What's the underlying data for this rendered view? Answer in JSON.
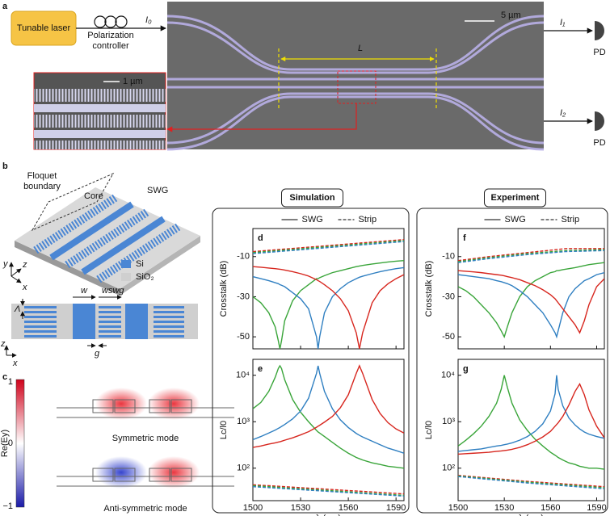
{
  "figure": {
    "panel_a": {
      "label": "a",
      "laser": "Tunable laser",
      "controller": "Polarization controller",
      "input": "I₀",
      "scale": "5 µm",
      "length": "L",
      "inset_scale": "1 µm",
      "output1": "I₁",
      "output2": "I₂",
      "detector1": "PD",
      "detector2": "PD"
    },
    "panel_b": {
      "label": "b",
      "floquet": "Floquet boundary",
      "core": "Core",
      "swg": "SWG",
      "axis_y": "y",
      "axis_z": "z",
      "axis_x": "x",
      "legend_si": "Si",
      "legend_sio2": "SiO₂",
      "width": "w",
      "width_swg": "wswg",
      "period": "Λ",
      "gap": "g",
      "axis_z2": "z",
      "axis_x2": "x"
    },
    "panel_c": {
      "label": "c",
      "colorbar_label": "Re(Ey)",
      "colorbar_max": "1",
      "colorbar_mid": "0",
      "colorbar_min": "−1",
      "symmetric": "Symmetric mode",
      "antisymmetric": "Anti-symmetric mode"
    }
  },
  "chart_data": [
    {
      "type": "line",
      "label": "d",
      "title": "Simulation",
      "legend": true,
      "ylabel": "Crosstalk (dB)",
      "xlim": [
        1500,
        1595
      ],
      "xticks": [
        1500,
        1530,
        1560,
        1590
      ],
      "show_xtick_labels": false,
      "ylim": [
        -56,
        4
      ],
      "yticks": [
        -10,
        -30,
        -50
      ],
      "x": [
        1500,
        1505,
        1510,
        1514,
        1516,
        1517,
        1518,
        1520,
        1525,
        1530,
        1535,
        1540,
        1541,
        1542,
        1545,
        1550,
        1555,
        1560,
        1565,
        1567,
        1569,
        1575,
        1580,
        1585,
        1590,
        1595
      ],
      "series": [
        {
          "name": "SWG",
          "style": "solid",
          "color": "#3aa53a",
          "values": [
            -30,
            -33,
            -38,
            -45,
            -52,
            -56,
            -52,
            -42,
            -32,
            -27,
            -24,
            -21,
            -21,
            -20.5,
            -19.5,
            -18,
            -17,
            -16,
            -15,
            -14.7,
            -14.4,
            -13.7,
            -13.2,
            -12.7,
            -12.3,
            -12
          ]
        },
        {
          "name": "SWG",
          "style": "solid",
          "color": "#2f7fc1",
          "values": [
            -20,
            -21,
            -22,
            -23,
            -23.5,
            -24,
            -24.3,
            -25,
            -28,
            -31,
            -36,
            -50,
            -56,
            -50,
            -38,
            -30,
            -26,
            -23,
            -21,
            -20.3,
            -19.8,
            -18.5,
            -17.5,
            -16.7,
            -16,
            -15.5
          ]
        },
        {
          "name": "SWG",
          "style": "solid",
          "color": "#d7261e",
          "values": [
            -15,
            -15.3,
            -15.7,
            -16,
            -16.2,
            -16.3,
            -16.4,
            -16.7,
            -17.5,
            -18.5,
            -19.7,
            -21.5,
            -22,
            -22.4,
            -24,
            -27,
            -31,
            -37,
            -48,
            -56,
            -48,
            -33,
            -27,
            -23.5,
            -21,
            -19
          ]
        },
        {
          "name": "Strip",
          "style": "dashed",
          "color": "#d7261e",
          "x": [
            1500,
            1595
          ],
          "values": [
            -7.5,
            -1.5
          ]
        },
        {
          "name": "Strip",
          "style": "dashed",
          "color": "#3aa53a",
          "x": [
            1500,
            1595
          ],
          "values": [
            -8,
            -2
          ]
        },
        {
          "name": "Strip",
          "style": "dashed",
          "color": "#2f7fc1",
          "x": [
            1500,
            1595
          ],
          "values": [
            -8.5,
            -2.5
          ]
        }
      ]
    },
    {
      "type": "line",
      "label": "e",
      "ylabel": "Lc/l0",
      "xlabel": "λ (nm)",
      "ylog": true,
      "xlim": [
        1500,
        1595
      ],
      "xticks": [
        1500,
        1530,
        1560,
        1590
      ],
      "ylim": [
        20,
        22000
      ],
      "yticks": [
        {
          "value": 100,
          "label": "10²"
        },
        {
          "value": 1000,
          "label": "10³"
        },
        {
          "value": 10000,
          "label": "10⁴"
        }
      ],
      "x": [
        1500,
        1505,
        1510,
        1514,
        1516,
        1517,
        1518,
        1520,
        1525,
        1530,
        1535,
        1540,
        1541,
        1542,
        1545,
        1550,
        1555,
        1560,
        1565,
        1567,
        1569,
        1575,
        1580,
        1585,
        1590,
        1595
      ],
      "series": [
        {
          "name": "SWG",
          "style": "solid",
          "color": "#3aa53a",
          "values": [
            1900,
            2600,
            4500,
            9000,
            14000,
            16000,
            14000,
            8000,
            3000,
            1600,
            1000,
            650,
            600,
            570,
            480,
            360,
            270,
            210,
            170,
            160,
            150,
            130,
            120,
            110,
            105,
            100
          ]
        },
        {
          "name": "SWG",
          "style": "solid",
          "color": "#2f7fc1",
          "values": [
            410,
            480,
            570,
            660,
            720,
            750,
            790,
            870,
            1150,
            1700,
            3200,
            11000,
            16000,
            11000,
            4500,
            1900,
            1100,
            750,
            560,
            510,
            470,
            380,
            320,
            270,
            240,
            210
          ]
        },
        {
          "name": "SWG",
          "style": "solid",
          "color": "#d7261e",
          "values": [
            280,
            300,
            330,
            350,
            365,
            370,
            380,
            400,
            450,
            520,
            610,
            760,
            800,
            840,
            980,
            1300,
            2000,
            3800,
            11000,
            16000,
            11000,
            3000,
            1500,
            950,
            700,
            570
          ]
        },
        {
          "name": "Strip",
          "style": "dashed",
          "color": "#d7261e",
          "x": [
            1500,
            1595
          ],
          "values": [
            44,
            28
          ]
        },
        {
          "name": "Strip",
          "style": "dashed",
          "color": "#3aa53a",
          "x": [
            1500,
            1595
          ],
          "values": [
            42,
            26
          ]
        },
        {
          "name": "Strip",
          "style": "dashed",
          "color": "#2f7fc1",
          "x": [
            1500,
            1595
          ],
          "values": [
            40,
            25
          ]
        }
      ]
    },
    {
      "type": "line",
      "label": "f",
      "title": "Experiment",
      "legend": true,
      "ylabel": "Crosstalk (dB)",
      "xlim": [
        1500,
        1595
      ],
      "xticks": [
        1500,
        1530,
        1560,
        1590
      ],
      "show_xtick_labels": false,
      "ylim": [
        -56,
        4
      ],
      "yticks": [
        -10,
        -30,
        -50
      ],
      "x": [
        1500,
        1505,
        1510,
        1515,
        1520,
        1525,
        1528,
        1530,
        1532,
        1535,
        1540,
        1545,
        1550,
        1555,
        1560,
        1563,
        1564,
        1565,
        1568,
        1572,
        1576,
        1579,
        1582,
        1585,
        1590,
        1595
      ],
      "series": [
        {
          "name": "SWG",
          "style": "solid",
          "color": "#3aa53a",
          "values": [
            -25,
            -27,
            -30,
            -34,
            -38,
            -43,
            -47,
            -50,
            -45,
            -38,
            -30,
            -25,
            -22,
            -20,
            -18,
            -17.5,
            -17,
            -17,
            -16.5,
            -16,
            -15.5,
            -15,
            -14.5,
            -14,
            -13.5,
            -13
          ]
        },
        {
          "name": "SWG",
          "style": "solid",
          "color": "#2f7fc1",
          "values": [
            -19,
            -19.5,
            -20,
            -20.5,
            -21,
            -22,
            -22.5,
            -23,
            -23.5,
            -24.5,
            -27,
            -30,
            -34,
            -38,
            -44,
            -48,
            -50,
            -47,
            -38,
            -30,
            -26,
            -24,
            -22,
            -21,
            -19,
            -18
          ]
        },
        {
          "name": "SWG",
          "style": "solid",
          "color": "#d7261e",
          "values": [
            -17,
            -17.3,
            -17.6,
            -18,
            -18.5,
            -19,
            -19.3,
            -19.6,
            -20,
            -20.5,
            -21.5,
            -23,
            -24.5,
            -26.5,
            -29,
            -31,
            -32,
            -33,
            -36,
            -40,
            -44,
            -48,
            -42,
            -34,
            -25,
            -21
          ]
        },
        {
          "name": "Strip",
          "style": "dashed",
          "color": "#d7261e",
          "x": [
            1500,
            1520,
            1545,
            1570,
            1595
          ],
          "values": [
            -12,
            -10,
            -8,
            -6,
            -6
          ]
        },
        {
          "name": "Strip",
          "style": "dashed",
          "color": "#3aa53a",
          "x": [
            1500,
            1520,
            1545,
            1570,
            1595
          ],
          "values": [
            -12.5,
            -10.5,
            -8.5,
            -7,
            -6.5
          ]
        },
        {
          "name": "Strip",
          "style": "dashed",
          "color": "#2f7fc1",
          "x": [
            1500,
            1520,
            1545,
            1570,
            1595
          ],
          "values": [
            -13,
            -11,
            -9,
            -7.5,
            -7
          ]
        }
      ]
    },
    {
      "type": "line",
      "label": "g",
      "ylabel": "Lc/l0",
      "xlabel": "λ (nm)",
      "ylog": true,
      "xlim": [
        1500,
        1595
      ],
      "xticks": [
        1500,
        1530,
        1560,
        1590
      ],
      "ylim": [
        20,
        22000
      ],
      "yticks": [
        {
          "value": 100,
          "label": "10²"
        },
        {
          "value": 1000,
          "label": "10³"
        },
        {
          "value": 10000,
          "label": "10⁴"
        }
      ],
      "x": [
        1500,
        1505,
        1510,
        1515,
        1520,
        1525,
        1528,
        1530,
        1532,
        1535,
        1540,
        1545,
        1550,
        1555,
        1560,
        1563,
        1564,
        1565,
        1568,
        1572,
        1576,
        1579,
        1582,
        1585,
        1590,
        1595
      ],
      "series": [
        {
          "name": "SWG",
          "style": "solid",
          "color": "#3aa53a",
          "values": [
            300,
            400,
            550,
            800,
            1300,
            2500,
            5000,
            10000,
            5500,
            2500,
            1100,
            650,
            420,
            300,
            220,
            190,
            180,
            170,
            150,
            130,
            120,
            110,
            105,
            100,
            100,
            95
          ]
        },
        {
          "name": "SWG",
          "style": "solid",
          "color": "#2f7fc1",
          "values": [
            230,
            240,
            250,
            260,
            280,
            300,
            310,
            320,
            330,
            350,
            400,
            480,
            620,
            900,
            1700,
            4000,
            10000,
            5000,
            2200,
            1200,
            850,
            700,
            600,
            540,
            480,
            440
          ]
        },
        {
          "name": "SWG",
          "style": "solid",
          "color": "#d7261e",
          "values": [
            200,
            205,
            210,
            215,
            220,
            230,
            235,
            240,
            245,
            255,
            280,
            320,
            380,
            470,
            620,
            800,
            870,
            950,
            1300,
            2300,
            4500,
            6500,
            3800,
            1800,
            800,
            450
          ]
        },
        {
          "name": "Strip",
          "style": "dashed",
          "color": "#d7261e",
          "x": [
            1500,
            1545,
            1595
          ],
          "values": [
            70,
            52,
            40
          ]
        },
        {
          "name": "Strip",
          "style": "dashed",
          "color": "#3aa53a",
          "x": [
            1500,
            1545,
            1595
          ],
          "values": [
            68,
            50,
            38
          ]
        },
        {
          "name": "Strip",
          "style": "dashed",
          "color": "#2f7fc1",
          "x": [
            1500,
            1545,
            1595
          ],
          "values": [
            66,
            48,
            36
          ]
        }
      ]
    }
  ]
}
